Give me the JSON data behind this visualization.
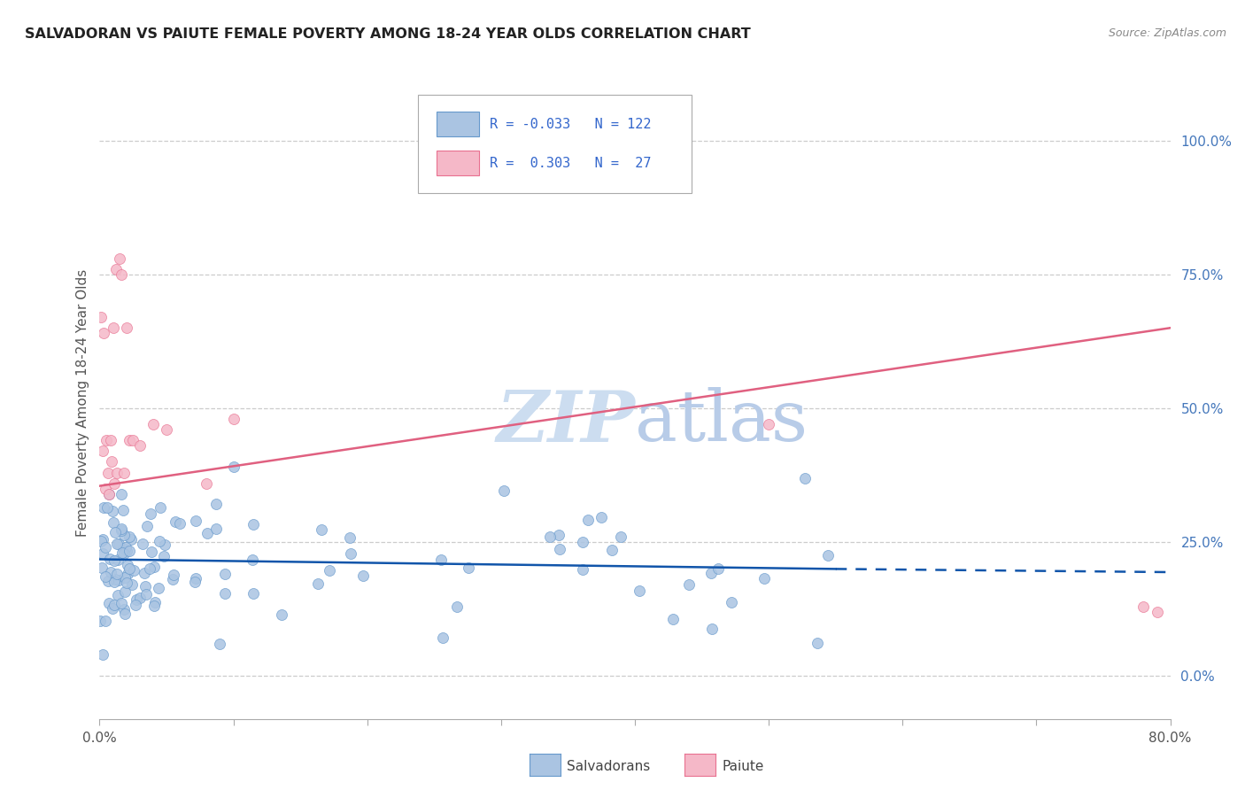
{
  "title": "SALVADORAN VS PAIUTE FEMALE POVERTY AMONG 18-24 YEAR OLDS CORRELATION CHART",
  "source": "Source: ZipAtlas.com",
  "ylabel": "Female Poverty Among 18-24 Year Olds",
  "right_yticks": [
    0.0,
    0.25,
    0.5,
    0.75,
    1.0
  ],
  "right_yticklabels": [
    "0.0%",
    "25.0%",
    "50.0%",
    "75.0%",
    "100.0%"
  ],
  "salvadoran_color": "#aac4e2",
  "paiute_color": "#f5b8c8",
  "salvadoran_edge_color": "#6699cc",
  "paiute_edge_color": "#e87090",
  "salvadoran_line_color": "#1155aa",
  "paiute_line_color": "#e06080",
  "grid_color": "#cccccc",
  "watermark_color": "#ccddf0",
  "xlim": [
    0.0,
    0.8
  ],
  "ylim": [
    -0.08,
    1.1
  ],
  "sal_line_x0": 0.0,
  "sal_line_x1": 0.55,
  "sal_line_y0": 0.218,
  "sal_line_y1": 0.2,
  "sal_line_dash_x0": 0.55,
  "sal_line_dash_x1": 0.8,
  "sal_line_dash_y0": 0.2,
  "sal_line_dash_y1": 0.194,
  "pai_line_x0": 0.0,
  "pai_line_x1": 0.8,
  "pai_line_y0": 0.355,
  "pai_line_y1": 0.65
}
